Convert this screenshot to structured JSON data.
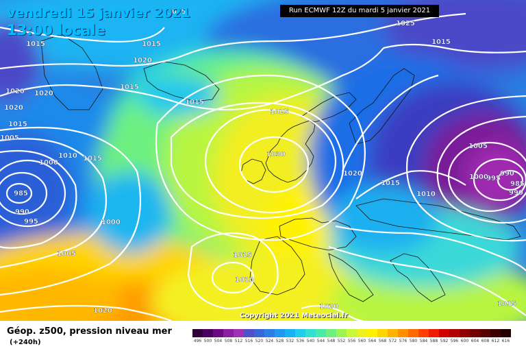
{
  "header": {
    "date_line": "vendredi 15 janvier 2021",
    "time_line": "13:00 locale",
    "run_label": "Run ECMWF 12Z du mardi 5 janvier 2021"
  },
  "copyright": "Copyright 2021 Meteociel.fr",
  "legend": {
    "title": "Géop. z500, pression niveau mer",
    "forecast_step": "(+240h)",
    "scale_values": [
      "496",
      "500",
      "504",
      "508",
      "512",
      "516",
      "520",
      "524",
      "528",
      "532",
      "536",
      "540",
      "544",
      "548",
      "552",
      "556",
      "560",
      "564",
      "568",
      "572",
      "576",
      "580",
      "584",
      "588",
      "592",
      "596",
      "600",
      "604",
      "608",
      "612",
      "616"
    ],
    "scale_colors": [
      "#30003a",
      "#4b0060",
      "#6a0a82",
      "#8a1ea0",
      "#a030b4",
      "#5050c8",
      "#3a66d8",
      "#2b7fe6",
      "#1f98ef",
      "#19b2f2",
      "#20cfee",
      "#34e0d0",
      "#4aeaa8",
      "#6ef080",
      "#9cf555",
      "#c8f838",
      "#eef020",
      "#fff000",
      "#ffd400",
      "#ffb200",
      "#ff9000",
      "#ff6a00",
      "#ff3e00",
      "#ef1a00",
      "#d00000",
      "#b00000",
      "#900000",
      "#720000",
      "#560000",
      "#3c0000",
      "#220000"
    ]
  },
  "isobars": [
    {
      "label": "1025"
    },
    {
      "label": "1025"
    },
    {
      "label": "1015"
    },
    {
      "label": "1015"
    },
    {
      "label": "1020"
    },
    {
      "label": "1015"
    },
    {
      "label": "1020"
    },
    {
      "label": "1020"
    },
    {
      "label": "1015"
    },
    {
      "label": "1015"
    },
    {
      "label": "1020"
    },
    {
      "label": "1015"
    },
    {
      "label": "1010"
    },
    {
      "label": "1015"
    },
    {
      "label": "1005"
    },
    {
      "label": "1000"
    },
    {
      "label": "985"
    },
    {
      "label": "990"
    },
    {
      "label": "995"
    },
    {
      "label": "1000"
    },
    {
      "label": "1005"
    },
    {
      "label": "1025"
    },
    {
      "label": "1030"
    },
    {
      "label": "1020"
    },
    {
      "label": "1015"
    },
    {
      "label": "1010"
    },
    {
      "label": "1005"
    },
    {
      "label": "1000"
    },
    {
      "label": "995"
    },
    {
      "label": "990"
    },
    {
      "label": "985"
    },
    {
      "label": "990"
    },
    {
      "label": "1015"
    },
    {
      "label": "1010"
    },
    {
      "label": "1020"
    },
    {
      "label": "1020"
    },
    {
      "label": "1015"
    }
  ],
  "colors": {
    "contour": "#ffffff",
    "title": "#00bfff"
  }
}
